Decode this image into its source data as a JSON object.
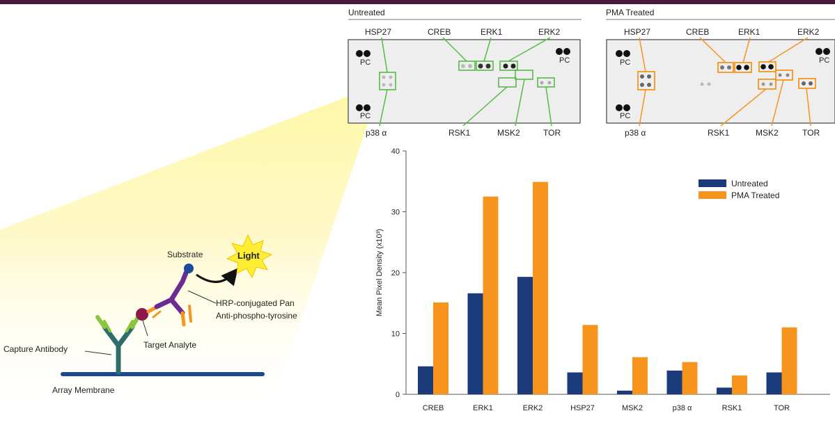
{
  "panels": {
    "untreated": {
      "title": "Untreated",
      "top_labels": [
        "HSP27",
        "CREB",
        "ERK1",
        "ERK2"
      ],
      "bottom_labels": [
        "p38 α",
        "RSK1",
        "MSK2",
        "TOR"
      ],
      "pc_label": "PC"
    },
    "pma": {
      "title": "PMA Treated",
      "top_labels": [
        "HSP27",
        "CREB",
        "ERK1",
        "ERK2"
      ],
      "bottom_labels": [
        "p38 α",
        "RSK1",
        "MSK2",
        "TOR"
      ],
      "pc_label": "PC"
    }
  },
  "schematic": {
    "substrate": "Substrate",
    "light": "Light",
    "hrp_line1": "HRP-conjugated Pan",
    "hrp_line2": "Anti-phospho-tyrosine",
    "target": "Target Analyte",
    "capture": "Capture Antibody",
    "membrane": "Array Membrane"
  },
  "colors": {
    "untreated": "#1b3a7a",
    "pma": "#f7941d",
    "untreated_box": "#57b947",
    "pma_box": "#f7941d",
    "membrane": "#1b4a8a",
    "header_bar": "#4a1a3a"
  },
  "chart_data": {
    "type": "bar",
    "categories": [
      "CREB",
      "ERK1",
      "ERK2",
      "HSP27",
      "MSK2",
      "p38 α",
      "RSK1",
      "TOR"
    ],
    "series": [
      {
        "name": "Untreated",
        "values": [
          4.6,
          16.6,
          19.3,
          3.6,
          0.6,
          3.9,
          1.1,
          3.6
        ]
      },
      {
        "name": "PMA Treated",
        "values": [
          15.1,
          32.5,
          34.9,
          11.4,
          6.1,
          5.3,
          3.1,
          11.0
        ]
      }
    ],
    "ylabel": "Mean Pixel Density (x10³)",
    "yticks": [
      0,
      10,
      20,
      30,
      40
    ],
    "ylim": [
      0,
      40
    ],
    "legend": "top-right"
  }
}
